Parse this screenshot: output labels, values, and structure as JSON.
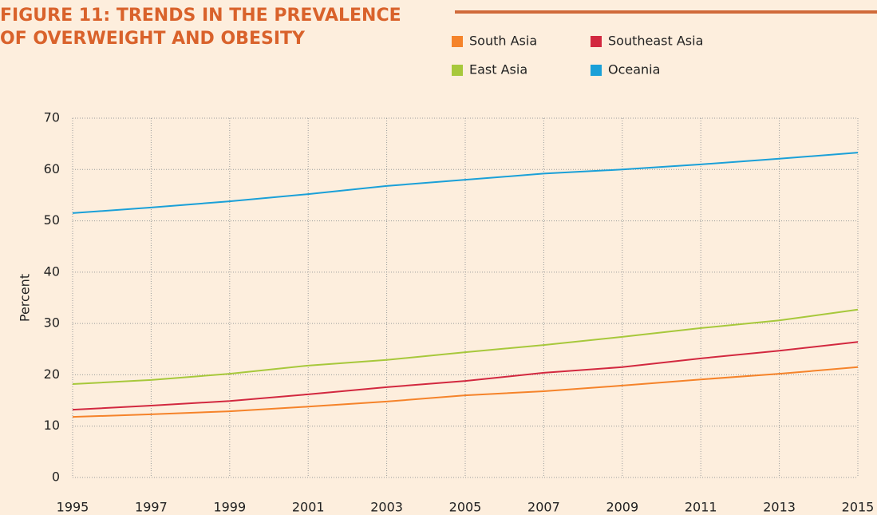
{
  "chart_data": {
    "type": "line",
    "title": [
      "FIGURE 11: TRENDS IN THE PREVALENCE",
      "OF OVERWEIGHT AND OBESITY"
    ],
    "y_label": "Percent",
    "x": [
      1995,
      1997,
      1999,
      2001,
      2003,
      2005,
      2007,
      2009,
      2011,
      2013,
      2015
    ],
    "series": [
      {
        "name": "South Asia",
        "color": "#f5832a",
        "values": [
          11.8,
          12.3,
          12.9,
          13.8,
          14.8,
          16.0,
          16.8,
          17.9,
          19.1,
          20.2,
          21.5
        ]
      },
      {
        "name": "Southeast Asia",
        "color": "#d2283f",
        "values": [
          13.2,
          14.0,
          14.9,
          16.2,
          17.6,
          18.8,
          20.4,
          21.5,
          23.2,
          24.7,
          26.4
        ]
      },
      {
        "name": "East Asia",
        "color": "#a7c83b",
        "values": [
          18.2,
          19.0,
          20.2,
          21.8,
          22.9,
          24.4,
          25.8,
          27.4,
          29.1,
          30.6,
          32.7
        ]
      },
      {
        "name": "Oceania",
        "color": "#1aa0d8",
        "values": [
          51.5,
          52.6,
          53.8,
          55.2,
          56.8,
          58.0,
          59.2,
          60.0,
          61.0,
          62.1,
          63.3
        ]
      }
    ],
    "xlim": [
      1995,
      2015
    ],
    "xticks": [
      1995,
      1997,
      1999,
      2001,
      2003,
      2005,
      2007,
      2009,
      2011,
      2013,
      2015
    ],
    "ylim": [
      0,
      70
    ],
    "yticks": [
      0,
      10,
      20,
      30,
      40,
      50,
      60,
      70
    ],
    "grid": true
  }
}
